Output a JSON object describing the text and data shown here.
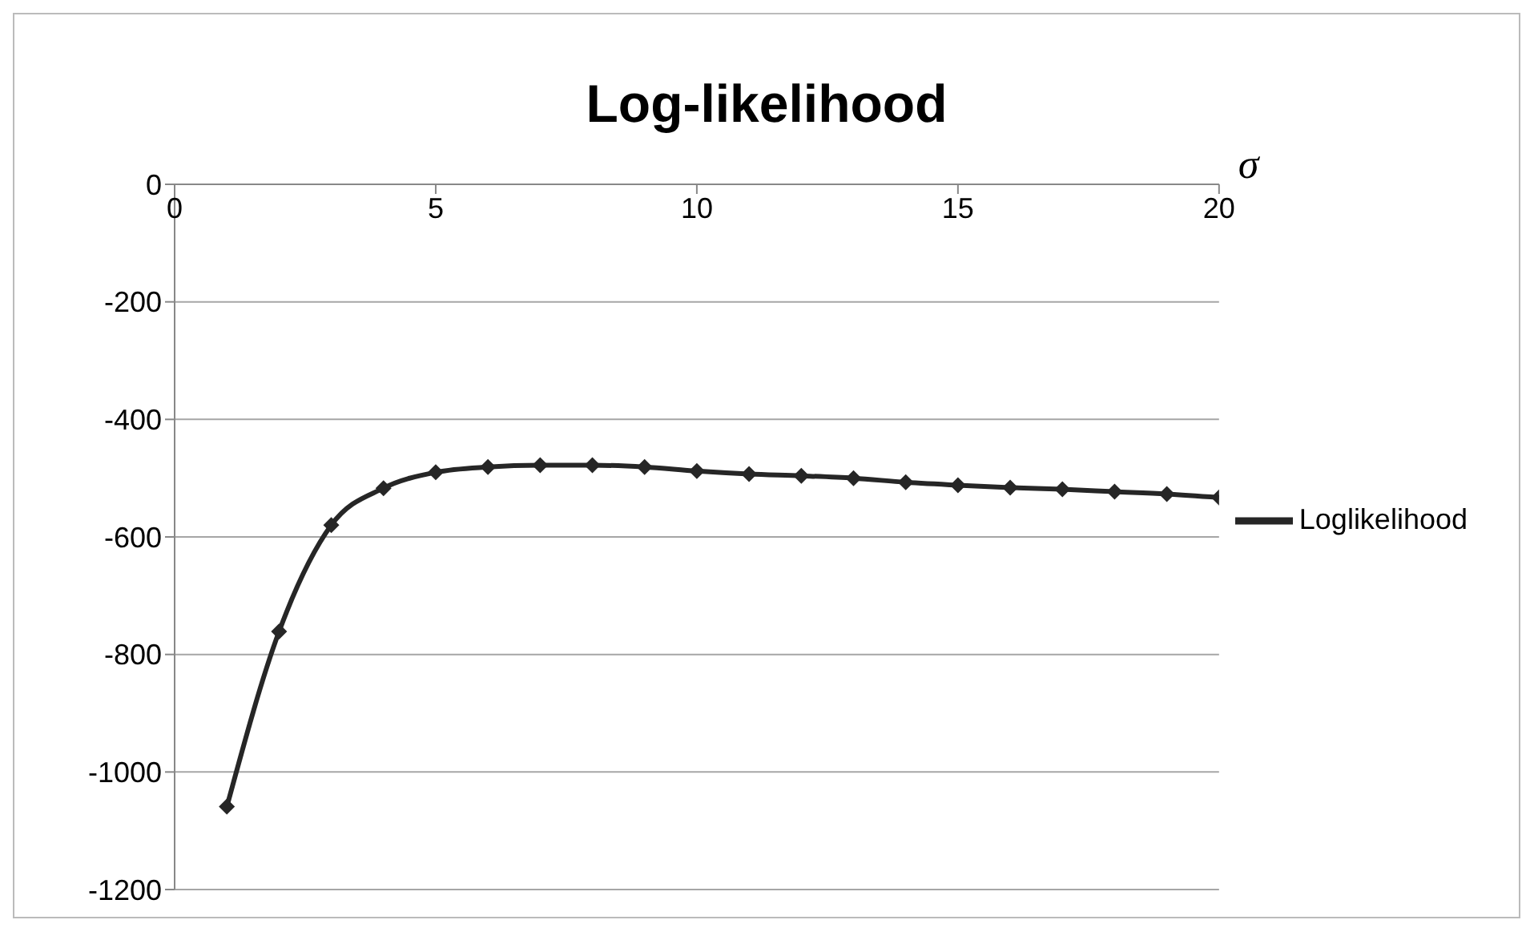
{
  "chart_data": {
    "type": "line",
    "title": "Log-likelihood",
    "xlabel": "σ",
    "x": [
      1,
      2,
      3,
      4,
      5,
      6,
      7,
      8,
      9,
      10,
      11,
      12,
      13,
      14,
      15,
      16,
      17,
      18,
      19,
      20
    ],
    "series": [
      {
        "name": "Loglikelihood",
        "color": "#262626",
        "values": [
          -1059,
          -761,
          -580,
          -517,
          -490,
          -481,
          -478,
          -478,
          -481,
          -488,
          -493,
          -496,
          -500,
          -507,
          -512,
          -516,
          -519,
          -523,
          -527,
          -533
        ]
      }
    ],
    "xlim": [
      0,
      20
    ],
    "xticks": [
      0,
      5,
      10,
      15,
      20
    ],
    "ylim": [
      -1200,
      0
    ],
    "yticks": [
      -1200,
      -1000,
      -800,
      -600,
      -400,
      -200,
      0
    ],
    "grid": "y",
    "legend": "right",
    "marker": "diamond",
    "line_style": "solid"
  }
}
